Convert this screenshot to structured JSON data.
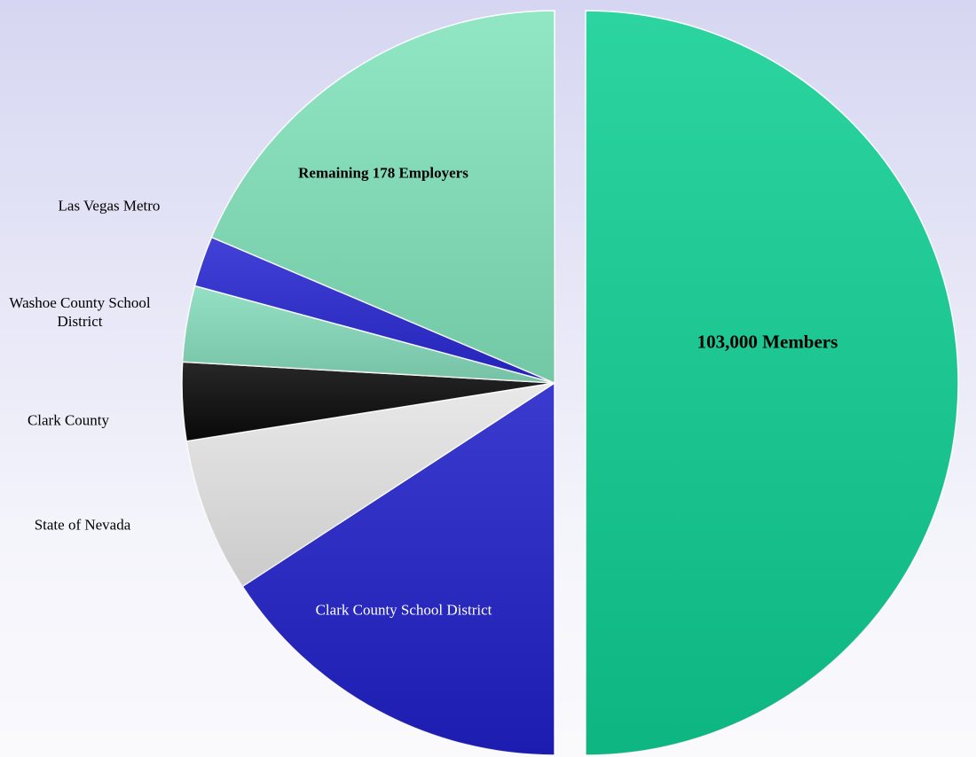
{
  "chart_data": {
    "type": "pie",
    "categories": [
      "103,000 Members",
      "Clark County School District",
      "State of Nevada",
      "Clark County",
      "Washoe County School District",
      "Las Vegas Metro",
      "Remaining 178 Employers"
    ],
    "values": [
      50,
      15.8,
      6.7,
      3.4,
      3.3,
      2.2,
      18.6
    ],
    "colors": [
      "#0fcf93",
      "#2020c8",
      "#e6e6e6",
      "#0a0a0a",
      "#86dcbc",
      "#2828d2",
      "#82e4bc"
    ]
  }
}
